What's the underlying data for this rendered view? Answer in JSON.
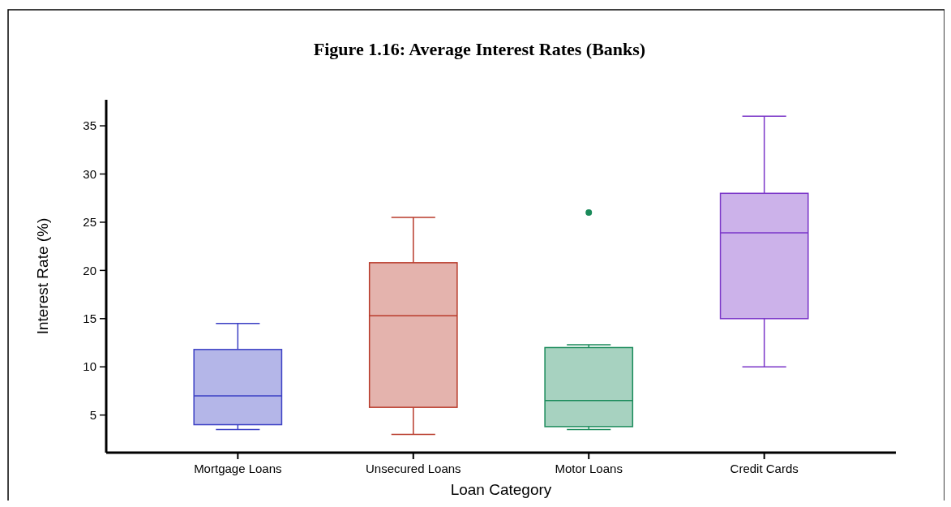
{
  "chart_data": {
    "type": "box",
    "title": "Figure 1.16: Average Interest Rates (Banks)",
    "xlabel": "Loan Category",
    "ylabel": "Interest Rate (%)",
    "categories": [
      "Mortgage Loans",
      "Unsecured Loans",
      "Motor Loans",
      "Credit Cards"
    ],
    "colors": [
      "#3b3fc4",
      "#b83a2a",
      "#1a8a5a",
      "#7a35c8"
    ],
    "boxes": [
      {
        "low": 3.5,
        "q1": 4,
        "median": 7,
        "q3": 11.8,
        "high": 14.5
      },
      {
        "low": 3,
        "q1": 5.8,
        "median": 15.3,
        "q3": 20.8,
        "high": 25.5
      },
      {
        "low": 3.5,
        "q1": 3.8,
        "median": 6.5,
        "q3": 12,
        "high": 12.3,
        "outliers": [
          26
        ]
      },
      {
        "low": 10,
        "q1": 15,
        "median": 23.9,
        "q3": 28,
        "high": 36
      }
    ],
    "ylim": [
      1.1,
      37.7
    ],
    "yticks": [
      5,
      10,
      15,
      20,
      25,
      30,
      35
    ],
    "grid": false
  }
}
